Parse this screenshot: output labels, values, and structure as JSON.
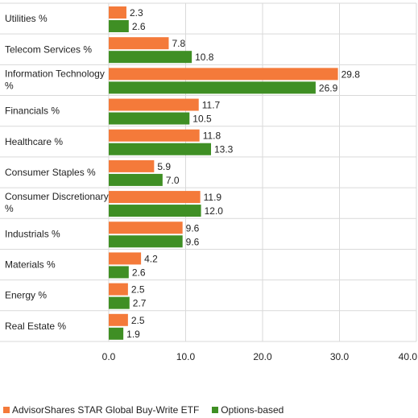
{
  "chart_data": {
    "type": "bar",
    "orientation": "horizontal",
    "categories": [
      [
        "Utilities %"
      ],
      [
        "Telecom Services %"
      ],
      [
        "Information Technology",
        "%"
      ],
      [
        "Financials %"
      ],
      [
        "Healthcare %"
      ],
      [
        "Consumer Staples %"
      ],
      [
        "Consumer Discretionary",
        "%"
      ],
      [
        "Industrials %"
      ],
      [
        "Materials %"
      ],
      [
        "Energy %"
      ],
      [
        "Real Estate %"
      ]
    ],
    "series": [
      {
        "name": "AdvisorShares STAR Global Buy-Write ETF",
        "color": "#f47a3a",
        "values": [
          2.3,
          7.8,
          29.8,
          11.7,
          11.8,
          5.9,
          11.9,
          9.6,
          4.2,
          2.5,
          2.5
        ]
      },
      {
        "name": "Options-based",
        "color": "#3f8f24",
        "values": [
          2.6,
          10.8,
          26.9,
          10.5,
          13.3,
          7.0,
          12.0,
          9.6,
          2.6,
          2.7,
          1.9
        ]
      }
    ],
    "xlim": [
      0,
      40
    ],
    "xticks": [
      0,
      10,
      20,
      30,
      40
    ],
    "value_format": "0.0",
    "grid": true,
    "legend_position": "bottom-left"
  }
}
